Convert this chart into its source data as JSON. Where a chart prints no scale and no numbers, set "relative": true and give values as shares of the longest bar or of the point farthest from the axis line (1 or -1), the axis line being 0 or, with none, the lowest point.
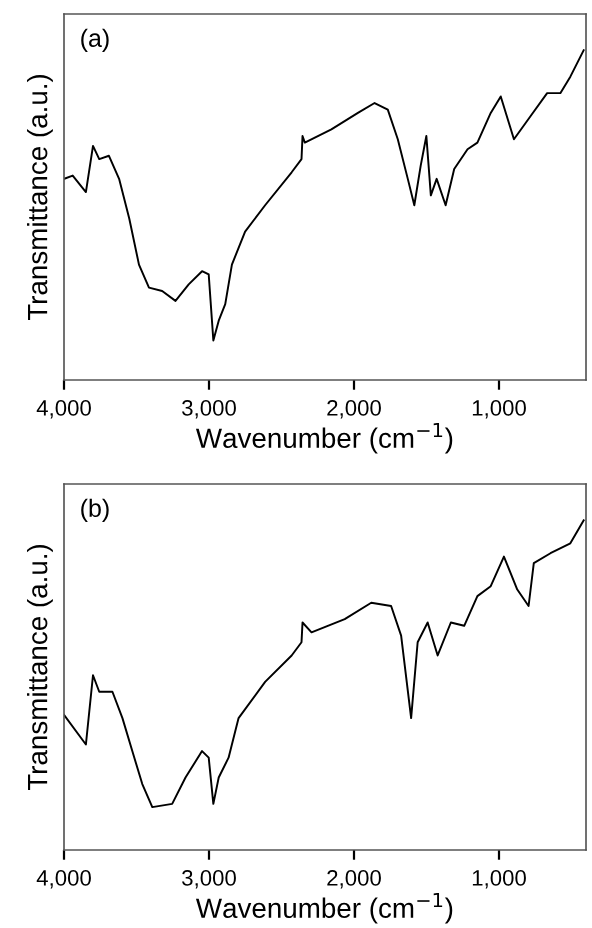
{
  "chart_data": [
    {
      "type": "line",
      "relative": true,
      "xlabel": "Wavenumber (cm$^{−1}$)",
      "ylabel": "Transmittance (a.u.)",
      "annotations": [
        "(a)"
      ],
      "xlim": [
        4000,
        400
      ],
      "xticks": [
        {
          "value": 4000,
          "label": "4,000"
        },
        {
          "value": 3000,
          "label": "3,000"
        },
        {
          "value": 2000,
          "label": "2,000"
        },
        {
          "value": 1000,
          "label": "1,000"
        }
      ],
      "grid": false,
      "legend": false,
      "marker": "none",
      "line_style": "solid",
      "series": [
        {
          "color": "#000000",
          "x": [
            4000,
            3940,
            3849,
            3800,
            3757,
            3690,
            3620,
            3550,
            3483,
            3414,
            3323,
            3231,
            3140,
            3048,
            3002,
            2970,
            2933,
            2888,
            2842,
            2751,
            2613,
            2430,
            2362,
            2355,
            2339,
            2156,
            1973,
            1858,
            1767,
            1698,
            1629,
            1584,
            1540,
            1501,
            1470,
            1430,
            1368,
            1309,
            1217,
            1149,
            1057,
            988,
            897,
            783,
            668,
            577,
            508,
            416
          ],
          "values": [
            0.61,
            0.62,
            0.57,
            0.71,
            0.67,
            0.68,
            0.61,
            0.49,
            0.35,
            0.28,
            0.27,
            0.24,
            0.29,
            0.33,
            0.32,
            0.12,
            0.18,
            0.23,
            0.35,
            0.45,
            0.53,
            0.63,
            0.67,
            0.74,
            0.72,
            0.76,
            0.81,
            0.84,
            0.82,
            0.73,
            0.61,
            0.53,
            0.65,
            0.74,
            0.56,
            0.61,
            0.53,
            0.64,
            0.7,
            0.72,
            0.81,
            0.86,
            0.73,
            0.8,
            0.87,
            0.87,
            0.92,
            1.0
          ]
        }
      ]
    },
    {
      "type": "line",
      "relative": true,
      "xlabel": "Wavenumber (cm$^{−1}$)",
      "ylabel": "Transmittance (a.u.)",
      "annotations": [
        "(b)"
      ],
      "xlim": [
        4000,
        400
      ],
      "xticks": [
        {
          "value": 4000,
          "label": "4,000"
        },
        {
          "value": 3000,
          "label": "3,000"
        },
        {
          "value": 2000,
          "label": "2,000"
        },
        {
          "value": 1000,
          "label": "1,000"
        }
      ],
      "grid": false,
      "legend": false,
      "marker": "none",
      "line_style": "solid",
      "series": [
        {
          "color": "#000000",
          "x": [
            4000,
            3849,
            3800,
            3757,
            3666,
            3597,
            3529,
            3460,
            3391,
            3254,
            3162,
            3048,
            3002,
            2970,
            2933,
            2865,
            2796,
            2613,
            2430,
            2362,
            2355,
            2293,
            2064,
            1881,
            1744,
            1675,
            1606,
            1561,
            1492,
            1423,
            1332,
            1240,
            1149,
            1057,
            966,
            874,
            796,
            760,
            645,
            508,
            416
          ],
          "values": [
            0.41,
            0.32,
            0.53,
            0.48,
            0.48,
            0.4,
            0.3,
            0.2,
            0.13,
            0.14,
            0.22,
            0.3,
            0.28,
            0.14,
            0.22,
            0.28,
            0.4,
            0.51,
            0.59,
            0.63,
            0.69,
            0.66,
            0.7,
            0.75,
            0.74,
            0.65,
            0.4,
            0.63,
            0.69,
            0.59,
            0.69,
            0.68,
            0.77,
            0.8,
            0.89,
            0.79,
            0.74,
            0.87,
            0.9,
            0.93,
            1.0
          ]
        }
      ]
    }
  ]
}
